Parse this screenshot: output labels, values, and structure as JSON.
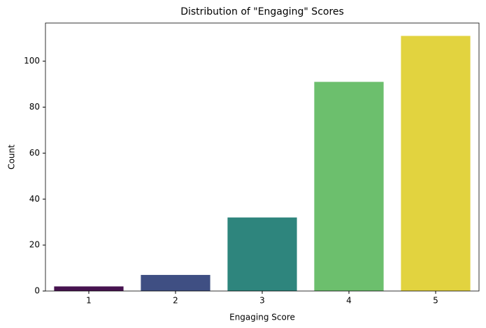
{
  "chart_data": {
    "type": "bar",
    "title": "Distribution of \"Engaging\" Scores",
    "x_label": "Engaging Score",
    "y_label": "Count",
    "categories": [
      "1",
      "2",
      "3",
      "4",
      "5"
    ],
    "values": [
      2,
      7,
      32,
      91,
      111
    ],
    "colors": [
      "#46124f",
      "#3f4f83",
      "#2e857d",
      "#6cbf6d",
      "#e2d33f"
    ],
    "ylim": [
      0,
      116.6
    ],
    "yticks": [
      0,
      20,
      40,
      60,
      80,
      100
    ],
    "grid": false
  }
}
